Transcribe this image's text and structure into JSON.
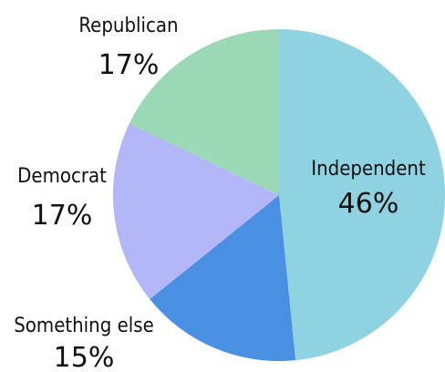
{
  "chart_data": {
    "type": "pie",
    "slices": [
      {
        "label": "Independent",
        "value": 46,
        "value_label": "46%",
        "color": "#8fd3e3"
      },
      {
        "label": "Something else",
        "value": 15,
        "value_label": "15%",
        "color": "#4a90e2"
      },
      {
        "label": "Democrat",
        "value": 17,
        "value_label": "17%",
        "color": "#b3b6f7"
      },
      {
        "label": "Republican",
        "value": 17,
        "value_label": "17%",
        "color": "#9bd9b6"
      }
    ],
    "start": "12 o'clock",
    "direction": "clockwise",
    "labels_position": "Independent inside slice; others outside, left of pie",
    "legend": "none"
  }
}
